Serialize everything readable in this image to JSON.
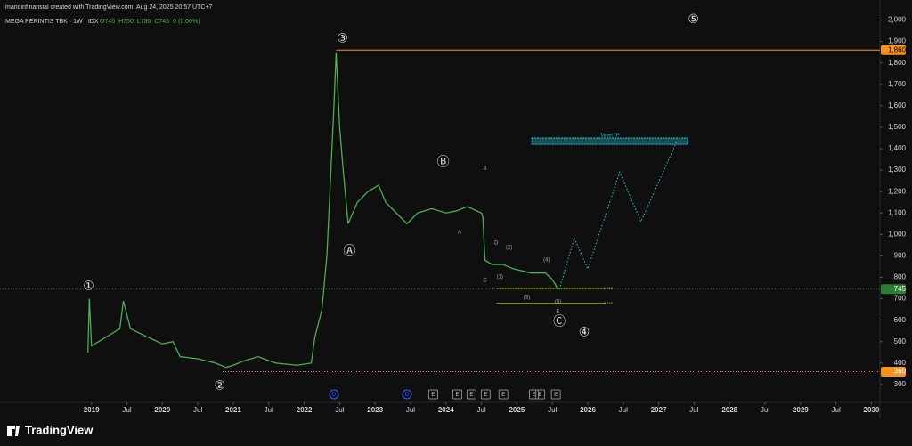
{
  "header": {
    "credit": "mandirifinansial created with TradingView.com, Aug 24, 2025 20:57 UTC+7",
    "symbol": "MEGA PERINTIS TBK · 1W · IDX",
    "ohlc": [
      "O745",
      "H750",
      "L730",
      "C745",
      "0 (0.00%)"
    ],
    "logo": "TradingView"
  },
  "chart_data": {
    "type": "line",
    "color": "#4caf50",
    "x": [
      2018.95,
      2018.97,
      2019.0,
      2019.2,
      2019.4,
      2019.45,
      2019.55,
      2019.8,
      2020.0,
      2020.15,
      2020.25,
      2020.5,
      2020.75,
      2020.9,
      2021.0,
      2021.15,
      2021.35,
      2021.6,
      2021.9,
      2022.1,
      2022.15,
      2022.25,
      2022.32,
      2022.37,
      2022.42,
      2022.45,
      2022.5,
      2022.55,
      2022.62,
      2022.75,
      2022.9,
      2023.05,
      2023.15,
      2023.3,
      2023.45,
      2023.6,
      2023.8,
      2024.0,
      2024.15,
      2024.3,
      2024.5,
      2024.52,
      2024.55,
      2024.65,
      2024.8,
      2024.95,
      2025.2,
      2025.4,
      2025.5,
      2025.58
    ],
    "series": [
      {
        "name": "MEGA PERINTIS TBK",
        "values": [
          450,
          700,
          480,
          520,
          560,
          690,
          560,
          520,
          490,
          500,
          430,
          420,
          400,
          380,
          390,
          410,
          430,
          400,
          390,
          400,
          520,
          650,
          900,
          1250,
          1600,
          1850,
          1500,
          1300,
          1050,
          1150,
          1200,
          1230,
          1150,
          1100,
          1050,
          1100,
          1120,
          1100,
          1110,
          1130,
          1100,
          1080,
          880,
          860,
          860,
          840,
          820,
          820,
          790,
          745
        ]
      }
    ],
    "projection": {
      "color": "#26c6da",
      "x": [
        2025.6,
        2025.81,
        2026.0,
        2026.45,
        2026.75,
        2027.25
      ],
      "values": [
        745,
        982,
        840,
        1290,
        1060,
        1430
      ]
    },
    "xlim": [
      2017.71,
      2030.12
    ],
    "ylim": [
      225,
      2085
    ],
    "xticks": [
      2019,
      {
        "value": 2019.5,
        "label": "Jul"
      },
      2020,
      {
        "value": 2020.5,
        "label": "Jul"
      },
      2021,
      {
        "value": 2021.5,
        "label": "Jul"
      },
      2022,
      {
        "value": 2022.5,
        "label": "Jul"
      },
      2023,
      {
        "value": 2023.5,
        "label": "Jul"
      },
      2024,
      {
        "value": 2024.5,
        "label": "Jul"
      },
      2025,
      {
        "value": 2025.5,
        "label": "Jul"
      },
      2026,
      {
        "value": 2026.5,
        "label": "Jul"
      },
      2027,
      {
        "value": 2027.5,
        "label": "Jul"
      },
      2028,
      {
        "value": 2028.5,
        "label": "Jul"
      },
      2029,
      {
        "value": 2029.5,
        "label": "Jul"
      },
      2030
    ],
    "yticks": [
      300,
      400,
      500,
      600,
      700,
      800,
      900,
      {
        "value": 1000,
        "label": "1,000"
      },
      {
        "value": 1100,
        "label": "1,100"
      },
      {
        "value": 1200,
        "label": "1,200"
      },
      {
        "value": 1300,
        "label": "1,300"
      },
      {
        "value": 1400,
        "label": "1,400"
      },
      {
        "value": 1500,
        "label": "1,500"
      },
      {
        "value": 1600,
        "label": "1,600"
      },
      {
        "value": 1700,
        "label": "1,700"
      },
      {
        "value": 1800,
        "label": "1,800"
      },
      {
        "value": 1900,
        "label": "1,900"
      },
      {
        "value": 2000,
        "label": "2,000"
      }
    ],
    "price_lines": [
      {
        "value": 1860,
        "label": "1,860",
        "color": "#f7931a",
        "from": 2022.45
      },
      {
        "value": 745,
        "color": "#2e7d32",
        "from": 2017.71
      },
      {
        "value": 360,
        "color": "#f7931a",
        "from": 2020.85
      }
    ],
    "fib_levels": [
      {
        "label": "1.618",
        "value": 749,
        "x": [
          2024.71,
          2026.25
        ]
      },
      {
        "label": "2.168",
        "value": 678,
        "x": [
          2024.71,
          2026.25
        ]
      }
    ],
    "target": {
      "text": "Target TP",
      "x": [
        2025.21,
        2027.41
      ],
      "y": [
        1420,
        1450
      ]
    },
    "annotations": [
      {
        "text": "①",
        "x": 2018.96,
        "y": 757
      },
      {
        "text": "②",
        "x": 2020.81,
        "y": 292
      },
      {
        "text": "③",
        "x": 2022.54,
        "y": 1912
      },
      {
        "text": "④",
        "x": 2025.95,
        "y": 541
      },
      {
        "text": "⑤",
        "x": 2027.49,
        "y": 2000
      },
      {
        "text": "Ⓐ",
        "x": 2022.64,
        "y": 919
      },
      {
        "text": "Ⓑ",
        "x": 2023.96,
        "y": 1335
      },
      {
        "text": "Ⓒ",
        "x": 2025.6,
        "y": 591
      },
      {
        "text": "B",
        "x": 2024.55,
        "y": 1306
      },
      {
        "text": "A",
        "x": 2024.19,
        "y": 1011
      },
      {
        "text": "D",
        "x": 2024.71,
        "y": 961
      },
      {
        "text": "(2)",
        "x": 2024.89,
        "y": 940
      },
      {
        "text": "C",
        "x": 2024.55,
        "y": 785
      },
      {
        "text": "(1)",
        "x": 2024.76,
        "y": 803
      },
      {
        "text": "(4)",
        "x": 2025.42,
        "y": 882
      },
      {
        "text": "(3)",
        "x": 2025.14,
        "y": 707
      },
      {
        "text": "(5)",
        "x": 2025.58,
        "y": 686
      },
      {
        "text": "E",
        "x": 2025.58,
        "y": 641
      }
    ],
    "events": [
      {
        "label": "D",
        "x": 2022.42
      },
      {
        "label": "D",
        "x": 2023.45
      },
      {
        "label": "E",
        "x": 2023.82
      },
      {
        "label": "E",
        "x": 2024.16
      },
      {
        "label": "E",
        "x": 2024.36
      },
      {
        "label": "E",
        "x": 2024.56
      },
      {
        "label": "E",
        "x": 2024.81
      },
      {
        "label": "E",
        "x": 2025.24
      },
      {
        "label": "E",
        "x": 2025.33
      },
      {
        "label": "E",
        "x": 2025.55
      }
    ]
  }
}
